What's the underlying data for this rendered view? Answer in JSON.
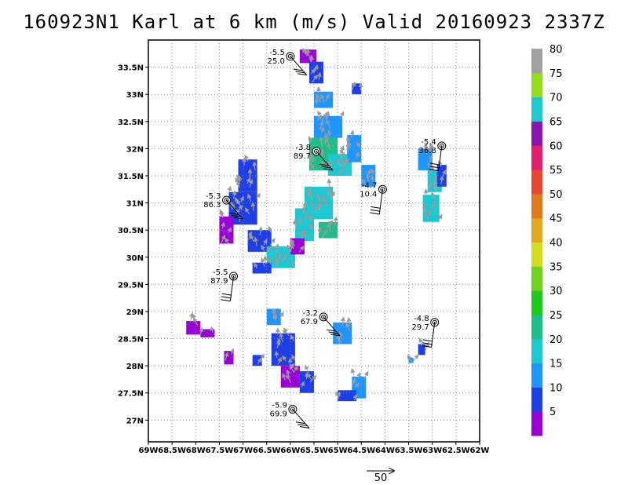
{
  "title": "160923N1 Karl at 6 km (m/s) Valid 20160923 2337Z",
  "map": {
    "lon_range": [
      -69,
      -62
    ],
    "lat_range": [
      26.6,
      34.0
    ],
    "x_ticks": [
      "69W",
      "68.5W",
      "68W",
      "67.5W",
      "67W",
      "66.5W",
      "66W",
      "65.5W",
      "65W",
      "64.5W",
      "64W",
      "63.5W",
      "63W",
      "62.5W",
      "62W"
    ],
    "y_ticks": [
      "33.5N",
      "33N",
      "32.5N",
      "32N",
      "31.5N",
      "31N",
      "30.5N",
      "30N",
      "29.5N",
      "29N",
      "28.5N",
      "28N",
      "27.5N",
      "27N"
    ],
    "grid": true
  },
  "colorbar": {
    "labels": [
      "5",
      "10",
      "15",
      "20",
      "25",
      "30",
      "35",
      "40",
      "45",
      "50",
      "55",
      "60",
      "65",
      "70",
      "75",
      "80"
    ],
    "colors": [
      "#9a00d6",
      "#1f3fe6",
      "#1f96ff",
      "#1ec8d0",
      "#1ebd8a",
      "#1cc81c",
      "#70d21c",
      "#d4dc20",
      "#e1a81e",
      "#e1781e",
      "#e64632",
      "#e61e6e",
      "#8c14b4",
      "#1ec8d0",
      "#96dc1e",
      "#a0a0a0"
    ]
  },
  "reference_vector": {
    "label": "50"
  },
  "dropsondes": [
    {
      "top": "-5.5",
      "bottom": "25.0",
      "lon": -66.0,
      "lat": 33.7
    },
    {
      "top": "-5.4",
      "bottom": "36.8",
      "lon": -62.8,
      "lat": 32.05
    },
    {
      "top": "-3.8",
      "bottom": "89.7",
      "lon": -65.45,
      "lat": 31.95
    },
    {
      "top": "-4.7",
      "bottom": "10.4",
      "lon": -64.05,
      "lat": 31.25
    },
    {
      "top": "-5.3",
      "bottom": "86.3",
      "lon": -67.35,
      "lat": 31.05
    },
    {
      "top": "-5.5",
      "bottom": "87.9",
      "lon": -67.2,
      "lat": 29.65
    },
    {
      "top": "-3.2",
      "bottom": "67.9",
      "lon": -65.3,
      "lat": 28.9
    },
    {
      "top": "-4.8",
      "bottom": "29.7",
      "lon": -62.95,
      "lat": 28.8
    },
    {
      "top": "-5.9",
      "bottom": "69.9",
      "lon": -65.95,
      "lat": 27.2
    }
  ],
  "wind_patches": [
    {
      "lon": -65.8,
      "lat": 33.7,
      "w": 0.35,
      "h": 0.25,
      "c": "#9a00d6"
    },
    {
      "lon": -65.6,
      "lat": 33.4,
      "w": 0.3,
      "h": 0.4,
      "c": "#1f3fe6"
    },
    {
      "lon": -65.5,
      "lat": 32.9,
      "w": 0.4,
      "h": 0.3,
      "c": "#1f96ff"
    },
    {
      "lon": -64.7,
      "lat": 33.1,
      "w": 0.2,
      "h": 0.2,
      "c": "#1f3fe6"
    },
    {
      "lon": -65.5,
      "lat": 32.4,
      "w": 0.6,
      "h": 0.4,
      "c": "#1f96ff"
    },
    {
      "lon": -65.6,
      "lat": 31.9,
      "w": 0.6,
      "h": 0.6,
      "c": "#1ebd8a"
    },
    {
      "lon": -65.2,
      "lat": 31.7,
      "w": 0.5,
      "h": 0.4,
      "c": "#1ec8d0"
    },
    {
      "lon": -64.8,
      "lat": 32.0,
      "w": 0.3,
      "h": 0.5,
      "c": "#1f96ff"
    },
    {
      "lon": -64.5,
      "lat": 31.5,
      "w": 0.3,
      "h": 0.4,
      "c": "#1f96ff"
    },
    {
      "lon": -65.7,
      "lat": 31.0,
      "w": 0.6,
      "h": 0.6,
      "c": "#1ec8d0"
    },
    {
      "lon": -65.9,
      "lat": 30.6,
      "w": 0.4,
      "h": 0.6,
      "c": "#1ec8d0"
    },
    {
      "lon": -65.4,
      "lat": 30.5,
      "w": 0.4,
      "h": 0.3,
      "c": "#1ebd8a"
    },
    {
      "lon": -67.1,
      "lat": 31.5,
      "w": 0.4,
      "h": 0.6,
      "c": "#1f3fe6"
    },
    {
      "lon": -67.3,
      "lat": 30.9,
      "w": 0.6,
      "h": 0.6,
      "c": "#1f3fe6"
    },
    {
      "lon": -67.5,
      "lat": 30.5,
      "w": 0.3,
      "h": 0.5,
      "c": "#9a00d6"
    },
    {
      "lon": -66.9,
      "lat": 30.3,
      "w": 0.5,
      "h": 0.4,
      "c": "#1f3fe6"
    },
    {
      "lon": -66.5,
      "lat": 30.0,
      "w": 0.6,
      "h": 0.4,
      "c": "#1ec8d0"
    },
    {
      "lon": -66.0,
      "lat": 30.2,
      "w": 0.3,
      "h": 0.3,
      "c": "#9a00d6"
    },
    {
      "lon": -66.8,
      "lat": 29.8,
      "w": 0.4,
      "h": 0.2,
      "c": "#1f3fe6"
    },
    {
      "lon": -63.3,
      "lat": 31.8,
      "w": 0.3,
      "h": 0.4,
      "c": "#1f96ff"
    },
    {
      "lon": -63.1,
      "lat": 31.4,
      "w": 0.3,
      "h": 0.4,
      "c": "#1ec8d0"
    },
    {
      "lon": -63.2,
      "lat": 30.9,
      "w": 0.35,
      "h": 0.5,
      "c": "#1ec8d0"
    },
    {
      "lon": -62.9,
      "lat": 31.5,
      "w": 0.2,
      "h": 0.4,
      "c": "#1f3fe6"
    },
    {
      "lon": -68.2,
      "lat": 28.7,
      "w": 0.3,
      "h": 0.25,
      "c": "#9a00d6"
    },
    {
      "lon": -67.9,
      "lat": 28.6,
      "w": 0.3,
      "h": 0.15,
      "c": "#9a00d6"
    },
    {
      "lon": -67.4,
      "lat": 28.15,
      "w": 0.2,
      "h": 0.25,
      "c": "#9a00d6"
    },
    {
      "lon": -66.8,
      "lat": 28.1,
      "w": 0.2,
      "h": 0.2,
      "c": "#1f3fe6"
    },
    {
      "lon": -66.5,
      "lat": 28.9,
      "w": 0.3,
      "h": 0.3,
      "c": "#1f96ff"
    },
    {
      "lon": -66.4,
      "lat": 28.3,
      "w": 0.5,
      "h": 0.6,
      "c": "#1f3fe6"
    },
    {
      "lon": -66.2,
      "lat": 27.8,
      "w": 0.4,
      "h": 0.4,
      "c": "#9a00d6"
    },
    {
      "lon": -65.8,
      "lat": 27.7,
      "w": 0.3,
      "h": 0.4,
      "c": "#1f3fe6"
    },
    {
      "lon": -65.1,
      "lat": 28.6,
      "w": 0.4,
      "h": 0.4,
      "c": "#1f96ff"
    },
    {
      "lon": -64.7,
      "lat": 27.6,
      "w": 0.3,
      "h": 0.4,
      "c": "#1f96ff"
    },
    {
      "lon": -65.0,
      "lat": 27.45,
      "w": 0.4,
      "h": 0.2,
      "c": "#1f3fe6"
    },
    {
      "lon": -63.3,
      "lat": 28.3,
      "w": 0.15,
      "h": 0.2,
      "c": "#1f3fe6"
    },
    {
      "lon": -63.5,
      "lat": 28.1,
      "w": 0.1,
      "h": 0.1,
      "c": "#1f96ff"
    }
  ]
}
